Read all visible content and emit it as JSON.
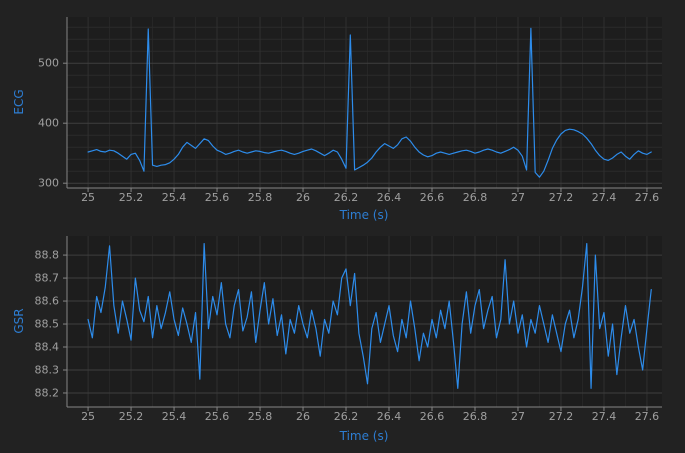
{
  "figure": {
    "background": "#222222",
    "plot_background": "#1d1d1d",
    "accent_blue": "#2d7dd2",
    "line_blue": "#2d8ceb",
    "grid_major_color": "#3e3e3e",
    "grid_minor_color": "#2b2b2b",
    "spine_color": "#858585",
    "tick_text_color": "#a0a0a0"
  },
  "chart_data": [
    {
      "type": "line",
      "title": "",
      "ylabel": "ECG",
      "xlabel": "Time (s)",
      "legend": "none",
      "grid": "on",
      "line_color": "#2d8ceb",
      "xlim": [
        24.902,
        27.67
      ],
      "ylim": [
        292,
        577
      ],
      "xticks": [
        25,
        25.2,
        25.4,
        25.6,
        25.8,
        26,
        26.2,
        26.4,
        26.6,
        26.8,
        27,
        27.2,
        27.4,
        27.6
      ],
      "xtick_labels": [
        "25",
        "25.2",
        "25.4",
        "25.6",
        "25.8",
        "26",
        "26.2",
        "26.4",
        "26.6",
        "26.8",
        "27",
        "27.2",
        "27.4",
        "27.6"
      ],
      "yticks": [
        300,
        400,
        500
      ],
      "ytick_labels": [
        "300",
        "400",
        "500"
      ],
      "x_minor_step": 0.1,
      "y_minor_step": 20,
      "x_start": 25.0,
      "dt": 0.02,
      "values": [
        352,
        354,
        356,
        353,
        352,
        355,
        354,
        350,
        345,
        340,
        348,
        350,
        338,
        320,
        557,
        330,
        328,
        330,
        331,
        334,
        340,
        348,
        360,
        368,
        363,
        358,
        366,
        374,
        371,
        362,
        355,
        352,
        348,
        350,
        353,
        355,
        352,
        350,
        352,
        354,
        353,
        351,
        350,
        352,
        354,
        355,
        353,
        350,
        348,
        350,
        353,
        355,
        357,
        354,
        350,
        346,
        350,
        355,
        352,
        340,
        325,
        547,
        322,
        326,
        330,
        335,
        342,
        352,
        360,
        366,
        362,
        358,
        364,
        374,
        377,
        370,
        360,
        352,
        347,
        344,
        346,
        350,
        352,
        350,
        348,
        350,
        352,
        354,
        355,
        353,
        350,
        352,
        355,
        357,
        355,
        352,
        350,
        353,
        356,
        360,
        355,
        345,
        322,
        558,
        318,
        310,
        320,
        338,
        358,
        372,
        382,
        388,
        390,
        389,
        386,
        382,
        375,
        366,
        355,
        346,
        340,
        338,
        342,
        348,
        352,
        345,
        340,
        348,
        354,
        350,
        348,
        352
      ]
    },
    {
      "type": "line",
      "title": "",
      "ylabel": "GSR",
      "xlabel": "Time (s)",
      "legend": "none",
      "grid": "on",
      "line_color": "#2d8ceb",
      "xlim": [
        24.902,
        27.67
      ],
      "ylim": [
        88.139,
        88.883
      ],
      "xticks": [
        25,
        25.2,
        25.4,
        25.6,
        25.8,
        26,
        26.2,
        26.4,
        26.6,
        26.8,
        27,
        27.2,
        27.4,
        27.6
      ],
      "xtick_labels": [
        "25",
        "25.2",
        "25.4",
        "25.6",
        "25.8",
        "26",
        "26.2",
        "26.4",
        "26.6",
        "26.8",
        "27",
        "27.2",
        "27.4",
        "27.6"
      ],
      "yticks": [
        88.2,
        88.3,
        88.4,
        88.5,
        88.6,
        88.7,
        88.8
      ],
      "ytick_labels": [
        "88.2",
        "88.3",
        "88.4",
        "88.5",
        "88.6",
        "88.7",
        "88.8"
      ],
      "x_minor_step": 0.1,
      "y_minor_step": null,
      "x_start": 25.0,
      "dt": 0.02,
      "values": [
        88.52,
        88.44,
        88.62,
        88.55,
        88.66,
        88.84,
        88.58,
        88.46,
        88.6,
        88.52,
        88.43,
        88.7,
        88.56,
        88.51,
        88.62,
        88.44,
        88.58,
        88.48,
        88.55,
        88.64,
        88.52,
        88.45,
        88.57,
        88.5,
        88.42,
        88.55,
        88.26,
        88.85,
        88.48,
        88.62,
        88.54,
        88.68,
        88.5,
        88.44,
        88.58,
        88.65,
        88.47,
        88.53,
        88.64,
        88.42,
        88.56,
        88.68,
        88.5,
        88.61,
        88.45,
        88.54,
        88.37,
        88.52,
        88.46,
        88.58,
        88.5,
        88.44,
        88.56,
        88.48,
        88.36,
        88.52,
        88.46,
        88.6,
        88.54,
        88.7,
        88.74,
        88.58,
        88.72,
        88.46,
        88.36,
        88.24,
        88.48,
        88.55,
        88.42,
        88.5,
        88.58,
        88.45,
        88.38,
        88.52,
        88.44,
        88.6,
        88.48,
        88.34,
        88.46,
        88.4,
        88.52,
        88.44,
        88.56,
        88.48,
        88.6,
        88.42,
        88.22,
        88.5,
        88.64,
        88.46,
        88.58,
        88.65,
        88.48,
        88.56,
        88.62,
        88.44,
        88.52,
        88.78,
        88.5,
        88.6,
        88.46,
        88.54,
        88.4,
        88.52,
        88.46,
        88.58,
        88.5,
        88.42,
        88.54,
        88.46,
        88.38,
        88.5,
        88.56,
        88.44,
        88.52,
        88.66,
        88.85,
        88.22,
        88.8,
        88.48,
        88.55,
        88.36,
        88.5,
        88.28,
        88.44,
        88.58,
        88.46,
        88.52,
        88.4,
        88.3,
        88.48,
        88.65
      ]
    }
  ]
}
